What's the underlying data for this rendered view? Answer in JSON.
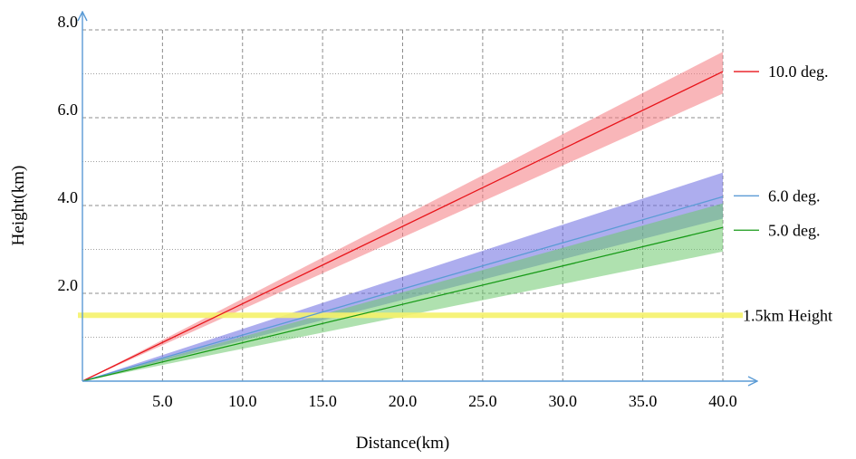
{
  "chart_data": {
    "type": "line",
    "xlabel": "Distance(km)",
    "ylabel": "Height(km)",
    "xlim": [
      0,
      40
    ],
    "ylim": [
      0,
      8
    ],
    "x_ticks": [
      5,
      10,
      15,
      20,
      25,
      30,
      35,
      40
    ],
    "x_tick_labels": [
      "5.0",
      "10.0",
      "15.0",
      "20.0",
      "25.0",
      "30.0",
      "35.0",
      "40.0"
    ],
    "y_ticks": [
      2,
      4,
      6,
      8
    ],
    "y_tick_labels": [
      "2.0",
      "4.0",
      "6.0",
      "8.0"
    ],
    "y_minor_gridlines": [
      1,
      3,
      5,
      7
    ],
    "grid": true,
    "legend_position": "right",
    "series": [
      {
        "name": "10.0 deg.",
        "color": "#e8141a",
        "band_color": "#f47a80",
        "x": [
          0,
          40
        ],
        "y": [
          0,
          7.05
        ],
        "band_upper": [
          0,
          7.5
        ],
        "band_lower": [
          0,
          6.55
        ]
      },
      {
        "name": "6.0 deg.",
        "color": "#5b9bd5",
        "band_color": "#6a6ae0",
        "x": [
          0,
          40
        ],
        "y": [
          0,
          4.2
        ],
        "band_upper": [
          0,
          4.75
        ],
        "band_lower": [
          0,
          3.7
        ]
      },
      {
        "name": "5.0 deg.",
        "color": "#169a16",
        "band_color": "#6dc86d",
        "x": [
          0,
          40
        ],
        "y": [
          0,
          3.5
        ],
        "band_upper": [
          0,
          4.05
        ],
        "band_lower": [
          0,
          2.95
        ]
      }
    ],
    "reference_lines": [
      {
        "label": "1.5km Height",
        "y": 1.5,
        "color": "#f5f26a"
      }
    ]
  }
}
